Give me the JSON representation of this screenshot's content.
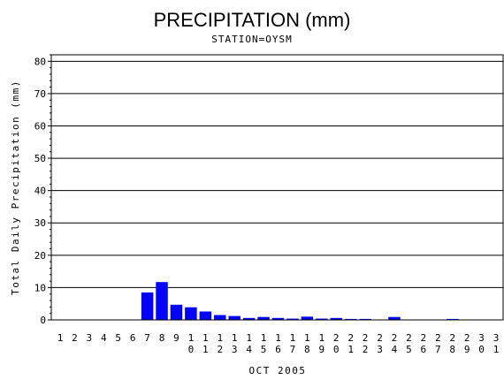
{
  "chart_data": {
    "type": "bar",
    "title": "PRECIPITATION (mm)",
    "subtitle": "STATION=OYSM",
    "xlabel": "OCT 2005",
    "ylabel": "Total Daily Precipitation (mm)",
    "ylim": [
      0,
      82
    ],
    "yticks": [
      0,
      10,
      20,
      30,
      40,
      50,
      60,
      70,
      80
    ],
    "grid": true,
    "bar_color": "#0000ff",
    "categories": [
      "1",
      "2",
      "3",
      "4",
      "5",
      "6",
      "7",
      "8",
      "9",
      "10",
      "11",
      "12",
      "13",
      "14",
      "15",
      "16",
      "17",
      "18",
      "19",
      "20",
      "21",
      "22",
      "23",
      "24",
      "25",
      "26",
      "27",
      "28",
      "29",
      "30",
      "31"
    ],
    "values": [
      0,
      0,
      0,
      0,
      0,
      0,
      8.5,
      11.7,
      4.7,
      3.9,
      2.6,
      1.5,
      1.2,
      0.6,
      0.9,
      0.6,
      0.4,
      1.0,
      0.4,
      0.6,
      0.3,
      0.3,
      0,
      0.9,
      0,
      0,
      0,
      0.3,
      0,
      0,
      0
    ]
  }
}
